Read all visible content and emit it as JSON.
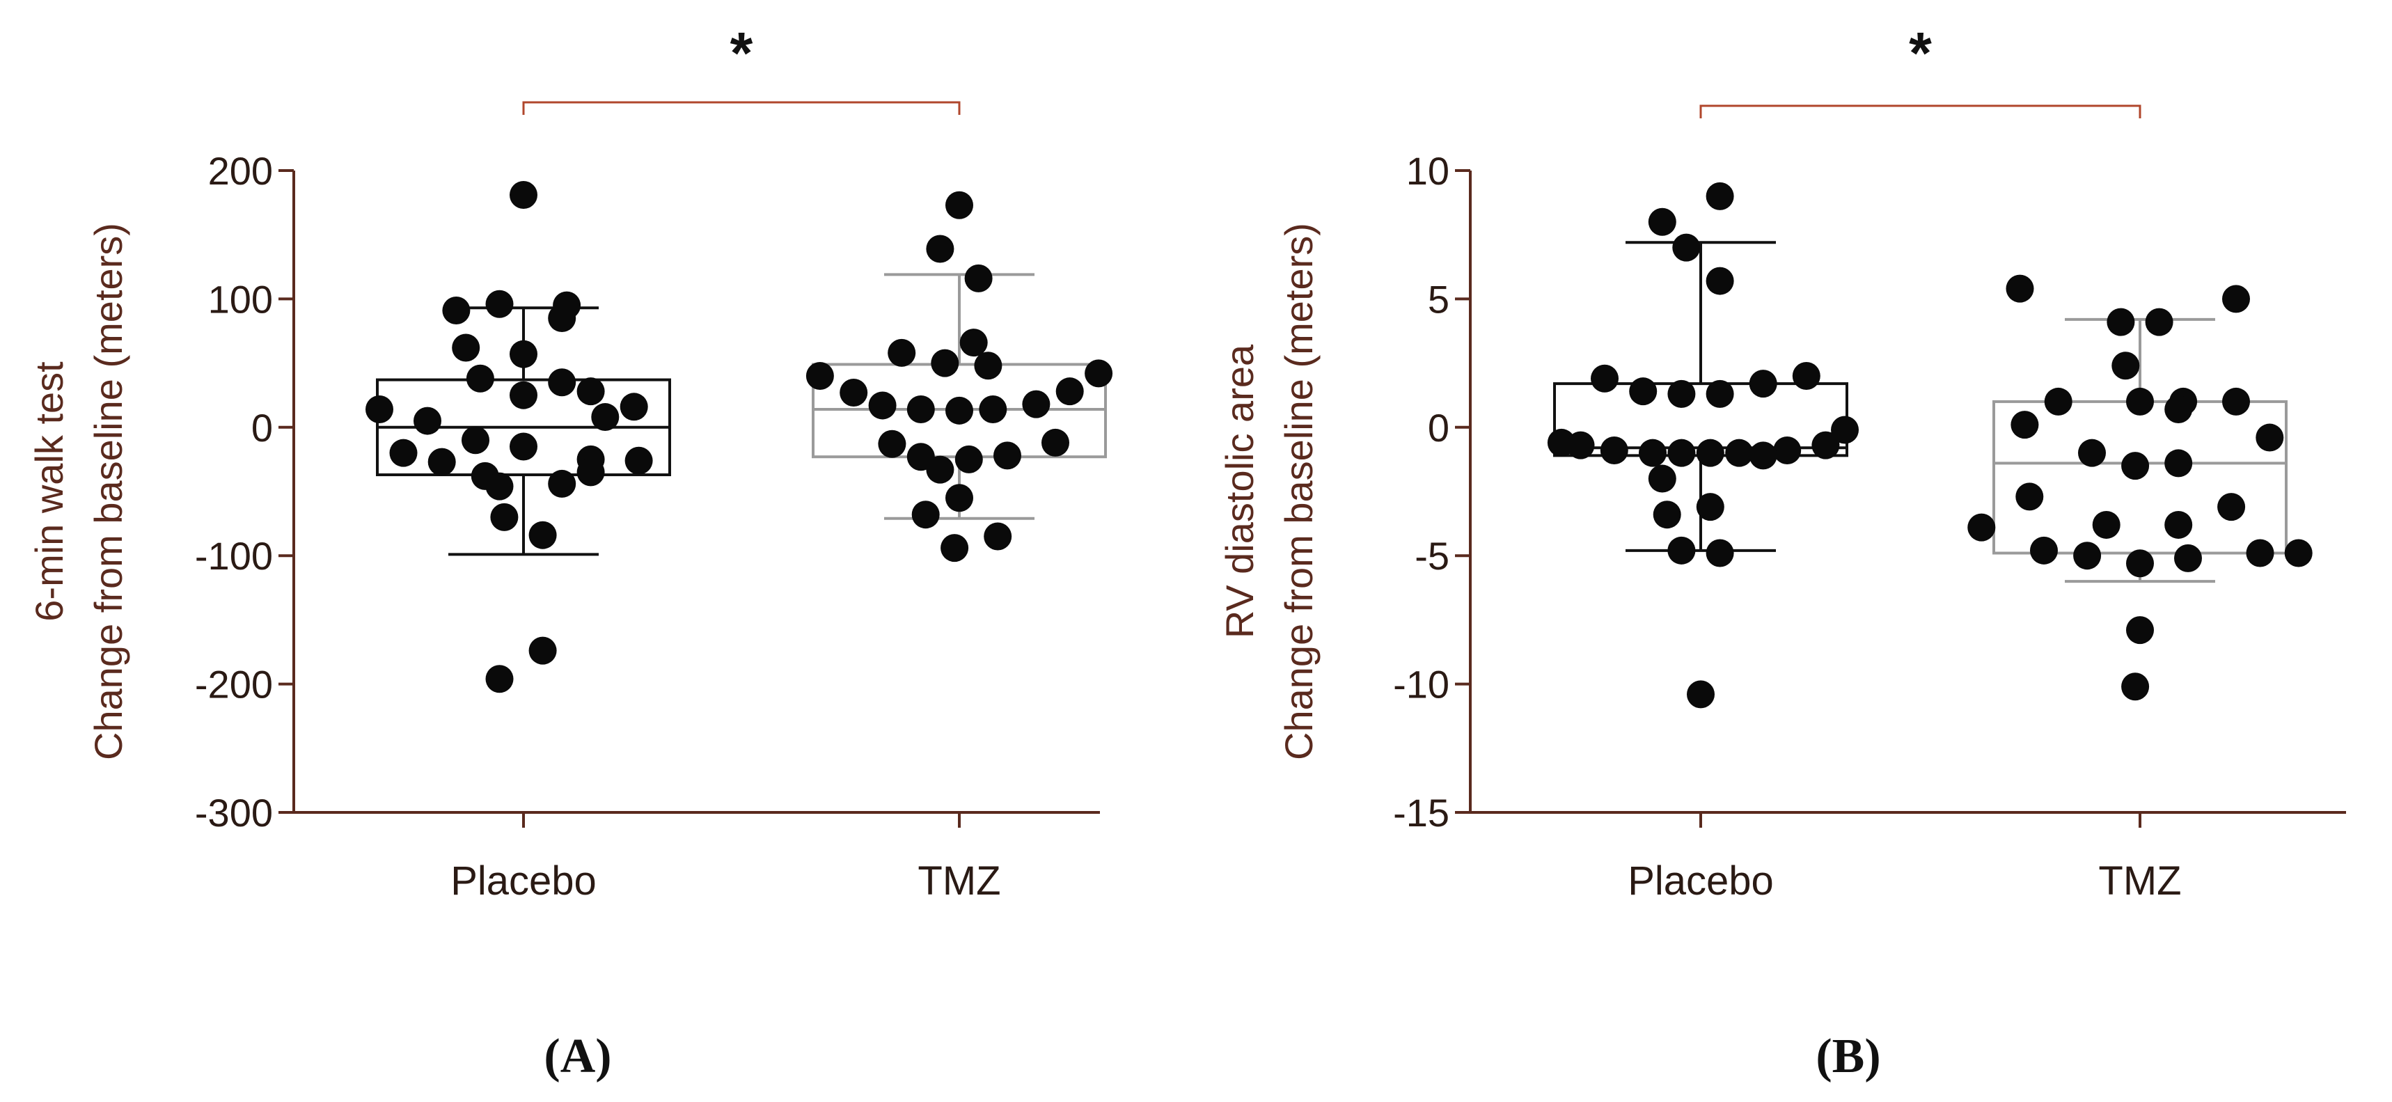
{
  "colors": {
    "axis": "#5a2a1e",
    "tick_text": "#2a1a14",
    "placebo_box": "#111111",
    "tmz_box": "#9a9a9a",
    "bracket": "#b0472c",
    "point": "#0a0a0a"
  },
  "chart_data": [
    {
      "type": "box-scatter",
      "panel_label": "(A)",
      "ylabel_line1": "6-min walk test",
      "ylabel_line2": "Change from baseline (meters)",
      "ylim": [
        -300,
        200
      ],
      "yticks": [
        200,
        100,
        0,
        -100,
        -200,
        -300
      ],
      "ytick_labels": [
        "200",
        "100",
        "0",
        "-100",
        "-200",
        "-300"
      ],
      "categories": [
        "Placebo",
        "TMZ"
      ],
      "significance": "*",
      "groups": [
        {
          "name": "Placebo",
          "box": {
            "whisker_low": -99,
            "q1": -37,
            "median": 0,
            "q3": 37,
            "whisker_high": 93
          },
          "points": [
            {
              "o": 0.0,
              "y": 181
            },
            {
              "o": -0.05,
              "y": 96
            },
            {
              "o": 0.09,
              "y": 95
            },
            {
              "o": -0.14,
              "y": 91
            },
            {
              "o": 0.08,
              "y": 85
            },
            {
              "o": -0.12,
              "y": 62
            },
            {
              "o": 0.0,
              "y": 57
            },
            {
              "o": -0.09,
              "y": 38
            },
            {
              "o": 0.08,
              "y": 35
            },
            {
              "o": 0.0,
              "y": 25
            },
            {
              "o": 0.14,
              "y": 28
            },
            {
              "o": -0.3,
              "y": 14
            },
            {
              "o": 0.23,
              "y": 16
            },
            {
              "o": -0.2,
              "y": 5
            },
            {
              "o": 0.17,
              "y": 8
            },
            {
              "o": -0.1,
              "y": -10
            },
            {
              "o": 0.0,
              "y": -15
            },
            {
              "o": -0.25,
              "y": -20
            },
            {
              "o": 0.14,
              "y": -25
            },
            {
              "o": -0.17,
              "y": -27
            },
            {
              "o": 0.24,
              "y": -26
            },
            {
              "o": -0.08,
              "y": -38
            },
            {
              "o": 0.14,
              "y": -35
            },
            {
              "o": 0.08,
              "y": -44
            },
            {
              "o": -0.05,
              "y": -46
            },
            {
              "o": -0.04,
              "y": -70
            },
            {
              "o": 0.04,
              "y": -84
            },
            {
              "o": 0.04,
              "y": -174
            },
            {
              "o": -0.05,
              "y": -196
            }
          ]
        },
        {
          "name": "TMZ",
          "box": {
            "whisker_low": -71,
            "q1": -23,
            "median": 14,
            "q3": 49,
            "whisker_high": 119
          },
          "points": [
            {
              "o": 0.0,
              "y": 173
            },
            {
              "o": -0.04,
              "y": 139
            },
            {
              "o": 0.04,
              "y": 116
            },
            {
              "o": 0.03,
              "y": 66
            },
            {
              "o": -0.12,
              "y": 58
            },
            {
              "o": -0.03,
              "y": 50
            },
            {
              "o": 0.06,
              "y": 48
            },
            {
              "o": -0.29,
              "y": 40
            },
            {
              "o": 0.29,
              "y": 42
            },
            {
              "o": -0.22,
              "y": 27
            },
            {
              "o": 0.23,
              "y": 28
            },
            {
              "o": -0.16,
              "y": 17
            },
            {
              "o": -0.08,
              "y": 14
            },
            {
              "o": 0.0,
              "y": 13
            },
            {
              "o": 0.07,
              "y": 14
            },
            {
              "o": 0.16,
              "y": 18
            },
            {
              "o": -0.14,
              "y": -13
            },
            {
              "o": 0.2,
              "y": -12
            },
            {
              "o": -0.08,
              "y": -23
            },
            {
              "o": 0.1,
              "y": -22
            },
            {
              "o": 0.02,
              "y": -25
            },
            {
              "o": -0.04,
              "y": -33
            },
            {
              "o": 0.0,
              "y": -55
            },
            {
              "o": -0.07,
              "y": -68
            },
            {
              "o": 0.08,
              "y": -85
            },
            {
              "o": -0.01,
              "y": -94
            }
          ]
        }
      ]
    },
    {
      "type": "box-scatter",
      "panel_label": "(B)",
      "ylabel_line1": "RV diastolic area",
      "ylabel_line2": "Change from baseline (meters)",
      "ylim": [
        -15,
        10
      ],
      "yticks": [
        10,
        5,
        0,
        -5,
        -10,
        -15
      ],
      "ytick_labels": [
        "10",
        "5",
        "0",
        "-5",
        "-10",
        "-15"
      ],
      "categories": [
        "Placebo",
        "TMZ"
      ],
      "significance": "*",
      "groups": [
        {
          "name": "Placebo",
          "box": {
            "whisker_low": -4.8,
            "q1": -1.1,
            "median": -0.8,
            "q3": 1.7,
            "whisker_high": 7.2
          },
          "points": [
            {
              "o": 0.04,
              "y": 9.0
            },
            {
              "o": -0.08,
              "y": 8.0
            },
            {
              "o": -0.03,
              "y": 7.0
            },
            {
              "o": 0.04,
              "y": 5.7
            },
            {
              "o": -0.2,
              "y": 1.9
            },
            {
              "o": 0.22,
              "y": 2.0
            },
            {
              "o": 0.13,
              "y": 1.7
            },
            {
              "o": -0.12,
              "y": 1.4
            },
            {
              "o": -0.04,
              "y": 1.3
            },
            {
              "o": 0.04,
              "y": 1.3
            },
            {
              "o": 0.3,
              "y": -0.1
            },
            {
              "o": -0.29,
              "y": -0.6
            },
            {
              "o": -0.25,
              "y": -0.7
            },
            {
              "o": 0.26,
              "y": -0.7
            },
            {
              "o": -0.18,
              "y": -0.9
            },
            {
              "o": 0.18,
              "y": -0.9
            },
            {
              "o": -0.1,
              "y": -1.0
            },
            {
              "o": -0.04,
              "y": -1.0
            },
            {
              "o": 0.02,
              "y": -1.0
            },
            {
              "o": 0.08,
              "y": -1.0
            },
            {
              "o": 0.13,
              "y": -1.1
            },
            {
              "o": -0.08,
              "y": -2.0
            },
            {
              "o": 0.02,
              "y": -3.1
            },
            {
              "o": -0.07,
              "y": -3.4
            },
            {
              "o": -0.04,
              "y": -4.8
            },
            {
              "o": 0.04,
              "y": -4.9
            },
            {
              "o": 0.0,
              "y": -10.4
            }
          ]
        },
        {
          "name": "TMZ",
          "box": {
            "whisker_low": -6.0,
            "q1": -4.9,
            "median": -1.4,
            "q3": 1.0,
            "whisker_high": 4.2
          },
          "points": [
            {
              "o": -0.25,
              "y": 5.4
            },
            {
              "o": 0.2,
              "y": 5.0
            },
            {
              "o": -0.04,
              "y": 4.1
            },
            {
              "o": 0.04,
              "y": 4.1
            },
            {
              "o": -0.03,
              "y": 2.4
            },
            {
              "o": -0.24,
              "y": 0.1
            },
            {
              "o": -0.17,
              "y": 1.0
            },
            {
              "o": 0.0,
              "y": 1.0
            },
            {
              "o": 0.09,
              "y": 1.0
            },
            {
              "o": 0.2,
              "y": 1.0
            },
            {
              "o": 0.08,
              "y": 0.7
            },
            {
              "o": 0.27,
              "y": -0.4
            },
            {
              "o": -0.1,
              "y": -1.0
            },
            {
              "o": -0.01,
              "y": -1.5
            },
            {
              "o": 0.08,
              "y": -1.4
            },
            {
              "o": -0.23,
              "y": -2.7
            },
            {
              "o": 0.19,
              "y": -3.1
            },
            {
              "o": -0.33,
              "y": -3.9
            },
            {
              "o": -0.07,
              "y": -3.8
            },
            {
              "o": 0.08,
              "y": -3.8
            },
            {
              "o": -0.2,
              "y": -4.8
            },
            {
              "o": -0.11,
              "y": -5.0
            },
            {
              "o": 0.0,
              "y": -5.3
            },
            {
              "o": 0.1,
              "y": -5.1
            },
            {
              "o": 0.25,
              "y": -4.9
            },
            {
              "o": 0.33,
              "y": -4.9
            },
            {
              "o": 0.0,
              "y": -7.9
            },
            {
              "o": -0.01,
              "y": -10.1
            }
          ]
        }
      ]
    }
  ]
}
